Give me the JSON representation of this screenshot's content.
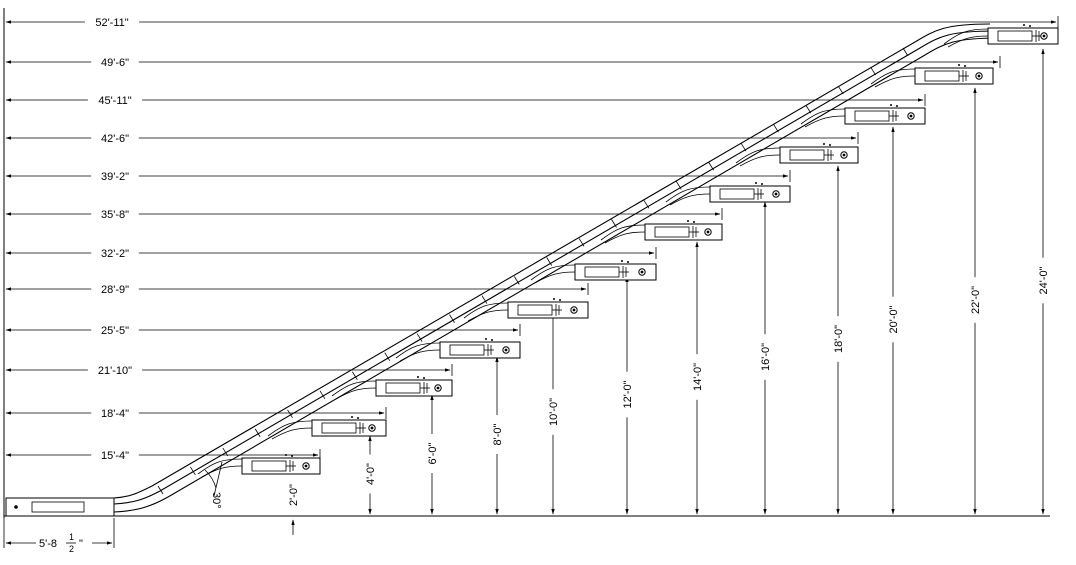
{
  "header_note": "",
  "horizontal_dimensions": [
    "52'-11\"",
    "49'-6\"",
    "45'-11\"",
    "42'-6\"",
    "39'-2\"",
    "35'-8\"",
    "32'-2\"",
    "28'-9\"",
    "25'-5\"",
    "21'-10\"",
    "18'-4\"",
    "15'-4\""
  ],
  "vertical_dimensions": [
    "2'-0\"",
    "4'-0\"",
    "6'-0\"",
    "8'-0\"",
    "10'-0\"",
    "12'-0\"",
    "14'-0\"",
    "16'-0\"",
    "18'-0\"",
    "20'-0\"",
    "22'-0\"",
    "24'-0\""
  ],
  "angle_label": "30°",
  "base_dimension": {
    "whole": "5'-8",
    "numerator": "1",
    "denominator": "2",
    "inch_mark": "\""
  }
}
